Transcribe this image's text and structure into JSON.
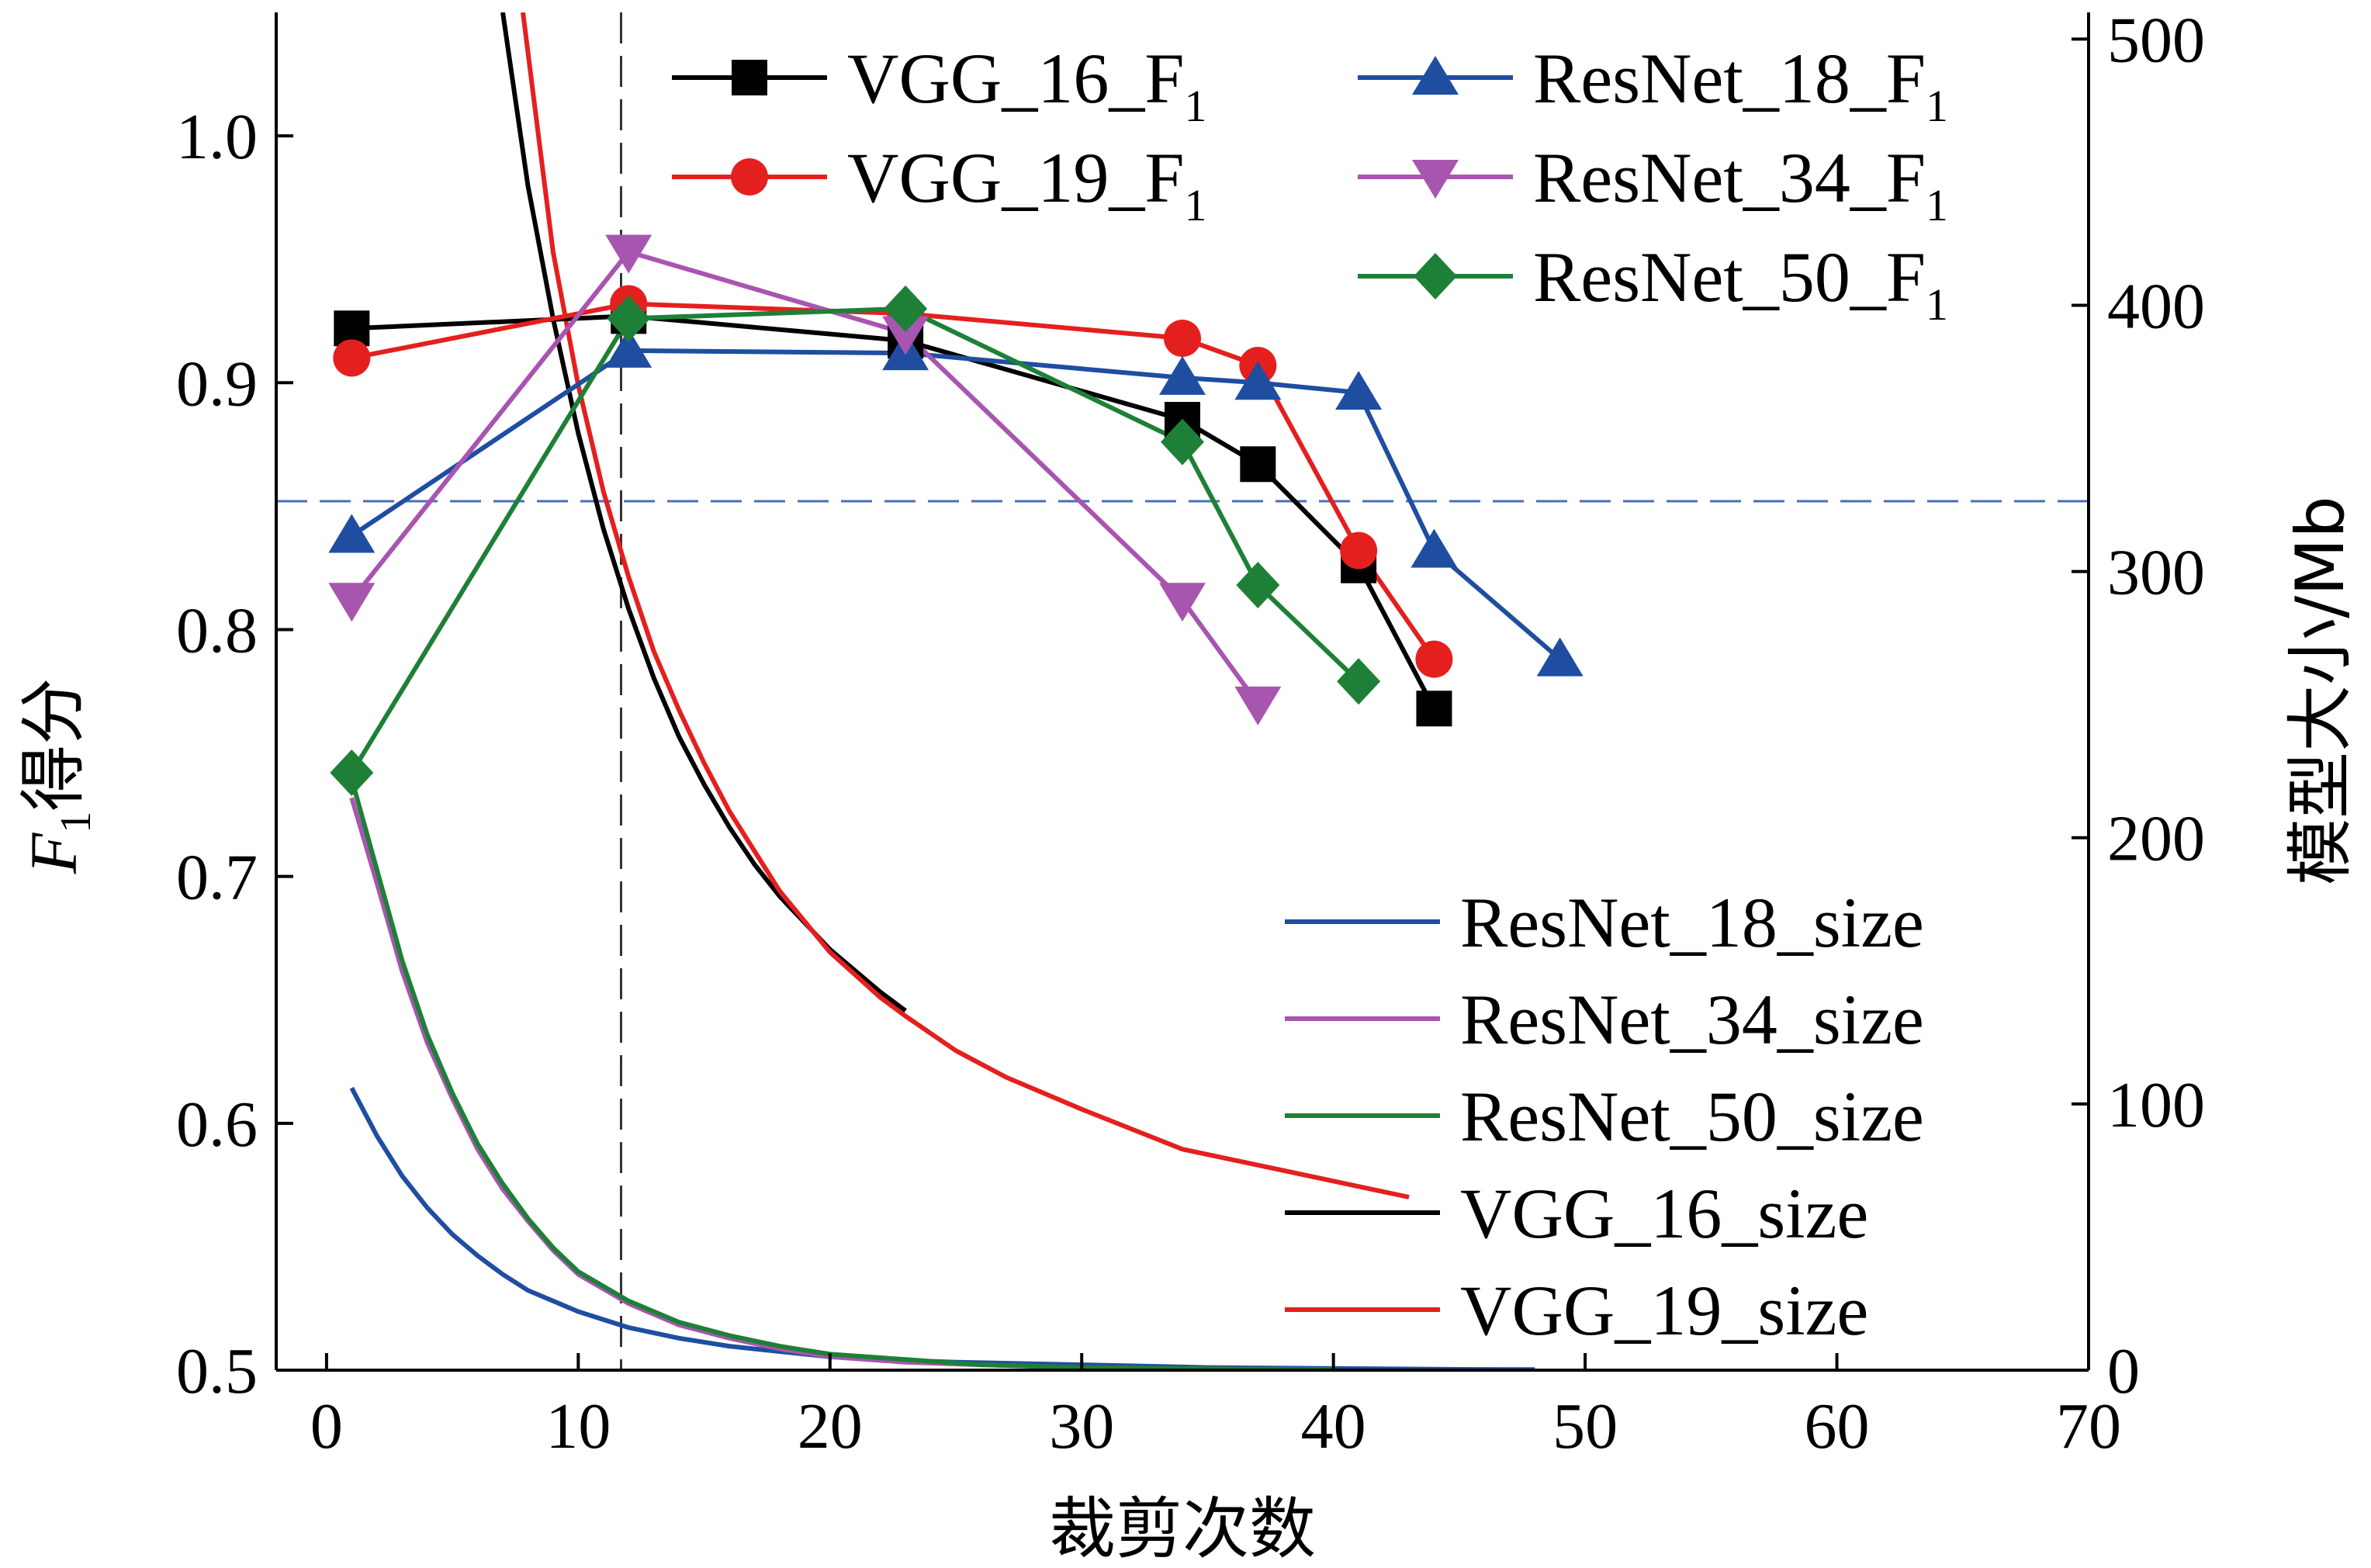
{
  "chart_data": {
    "type": "line",
    "xlabel": "裁剪次数",
    "ylabel_left_italic": "F",
    "ylabel_left_sub": "1",
    "ylabel_left_rest": "得分",
    "ylabel_right": "模型大小/Mb",
    "xlim": [
      -2,
      70
    ],
    "ylim_left": [
      0.5,
      1.05
    ],
    "ylim_right": [
      0,
      510
    ],
    "x_ticks": [
      0,
      10,
      20,
      30,
      40,
      50,
      60,
      70
    ],
    "y_left_ticks": [
      0.5,
      0.6,
      0.7,
      0.8,
      0.9,
      1.0
    ],
    "y_right_ticks": [
      0,
      100,
      200,
      300,
      400,
      500
    ],
    "reference_lines": {
      "vertical_x": 11.7,
      "horizontal_left_y": 0.852
    },
    "f1_series": [
      {
        "name": "VGG_16_F",
        "name_sub": "1",
        "color": "#000000",
        "marker": "square",
        "x": [
          1,
          12,
          23,
          34,
          37,
          41,
          44
        ],
        "y": [
          0.922,
          0.927,
          0.917,
          0.885,
          0.867,
          0.826,
          0.768
        ]
      },
      {
        "name": "VGG_19_F",
        "name_sub": "1",
        "color": "#e4201f",
        "marker": "circle",
        "x": [
          1,
          12,
          23,
          34,
          37,
          41,
          44
        ],
        "y": [
          0.91,
          0.932,
          0.928,
          0.918,
          0.907,
          0.832,
          0.788
        ]
      },
      {
        "name": "ResNet_18_F",
        "name_sub": "1",
        "color": "#1f4ea1",
        "marker": "triangle-up",
        "x": [
          1,
          12,
          23,
          34,
          37,
          41,
          44,
          49
        ],
        "y": [
          0.838,
          0.913,
          0.912,
          0.902,
          0.9,
          0.896,
          0.832,
          0.788
        ]
      },
      {
        "name": "ResNet_34_F",
        "name_sub": "1",
        "color": "#a855b0",
        "marker": "triangle-down",
        "x": [
          1,
          12,
          23,
          34,
          37
        ],
        "y": [
          0.812,
          0.953,
          0.92,
          0.812,
          0.77
        ]
      },
      {
        "name": "ResNet_50_F",
        "name_sub": "1",
        "color": "#1e8037",
        "marker": "diamond",
        "x": [
          1,
          12,
          23,
          34,
          37,
          41
        ],
        "y": [
          0.742,
          0.926,
          0.93,
          0.876,
          0.818,
          0.779
        ]
      }
    ],
    "size_series": [
      {
        "name": "ResNet_18_size",
        "color": "#1f4ea1",
        "x": [
          1,
          2,
          3,
          4,
          5,
          6,
          7,
          8,
          10,
          12,
          14,
          16,
          18,
          20,
          22,
          25,
          30,
          35,
          40,
          45,
          48
        ],
        "y": [
          106,
          88,
          73,
          61,
          51,
          43,
          36,
          30,
          22,
          16,
          12,
          9,
          7,
          5,
          4,
          3,
          2,
          1,
          0.6,
          0.3,
          0.2
        ]
      },
      {
        "name": "ResNet_34_size",
        "color": "#a855b0",
        "x": [
          1,
          2,
          3,
          4,
          5,
          6,
          7,
          8,
          9,
          10,
          12,
          14,
          16,
          18,
          20,
          23,
          26,
          30,
          35,
          40
        ],
        "y": [
          215,
          183,
          150,
          123,
          102,
          83,
          68,
          56,
          45,
          36,
          25,
          17,
          12,
          8,
          5,
          3,
          2,
          1,
          0.5,
          0.2
        ]
      },
      {
        "name": "ResNet_50_size",
        "color": "#1e8037",
        "x": [
          1,
          2,
          3,
          4,
          5,
          6,
          7,
          8,
          9,
          10,
          12,
          14,
          16,
          18,
          20,
          23,
          26,
          30,
          35,
          40
        ],
        "y": [
          222,
          188,
          154,
          126,
          104,
          85,
          70,
          57,
          46,
          37,
          26,
          18,
          13,
          9,
          6,
          4,
          2,
          1,
          0.5,
          0.2
        ]
      },
      {
        "name": "VGG_16_size",
        "color": "#000000",
        "x": [
          7,
          8,
          9,
          10,
          11,
          12,
          13,
          14,
          15,
          16,
          17,
          18,
          20,
          22,
          23
        ],
        "y": [
          510,
          445,
          395,
          352,
          316,
          286,
          260,
          238,
          220,
          204,
          190,
          178,
          158,
          142,
          135
        ]
      },
      {
        "name": "VGG_19_size",
        "color": "#e4201f",
        "x": [
          7.8,
          9,
          10,
          11,
          12,
          13,
          14,
          15,
          16,
          18,
          20,
          22,
          23,
          25,
          27,
          30,
          34,
          38,
          43
        ],
        "y": [
          510,
          420,
          370,
          330,
          298,
          270,
          248,
          228,
          210,
          180,
          157,
          140,
          133,
          120,
          110,
          98,
          83,
          75,
          65
        ]
      }
    ]
  },
  "legend_f1": [
    {
      "label": "VGG_16_F",
      "sub": "1"
    },
    {
      "label": "VGG_19_F",
      "sub": "1"
    },
    {
      "label": "ResNet_18_F",
      "sub": "1"
    },
    {
      "label": "ResNet_34_F",
      "sub": "1"
    },
    {
      "label": "ResNet_50_F",
      "sub": "1"
    }
  ],
  "legend_size": [
    "ResNet_18_size",
    "ResNet_34_size",
    "ResNet_50_size",
    "VGG_16_size",
    "VGG_19_size"
  ]
}
